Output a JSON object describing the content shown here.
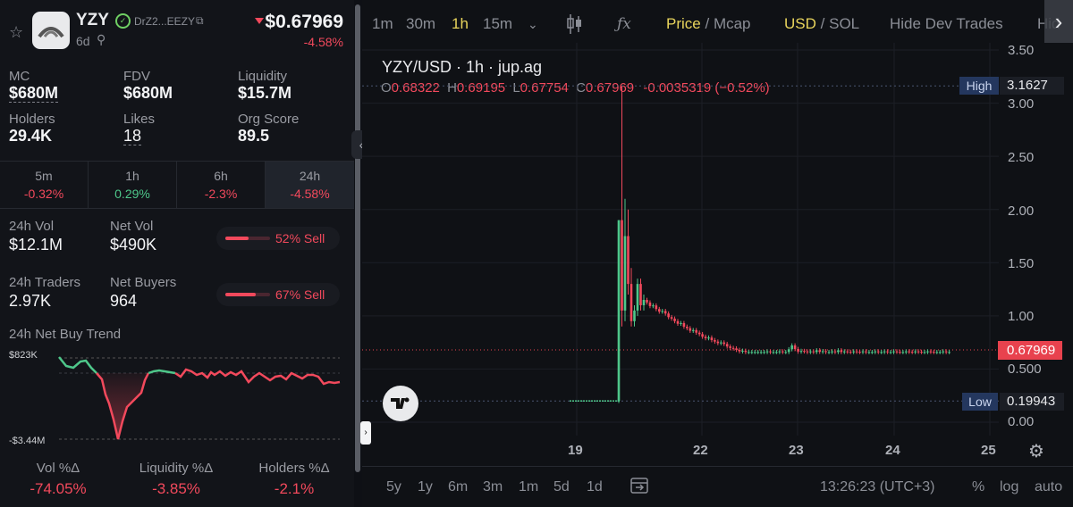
{
  "token": {
    "symbol": "YZY",
    "address": "DrZ2...EEZY",
    "age": "6d",
    "price": "$0.67969",
    "price_change": "-4.58%"
  },
  "stats": [
    {
      "label": "MC",
      "value": "$680M",
      "underline": true
    },
    {
      "label": "FDV",
      "value": "$680M",
      "underline": false
    },
    {
      "label": "Liquidity",
      "value": "$15.7M",
      "underline": false
    },
    {
      "label": "Holders",
      "value": "29.4K",
      "underline": false
    },
    {
      "label": "Likes",
      "value": "18",
      "underline": true
    },
    {
      "label": "Org Score",
      "value": "89.5",
      "underline": false
    }
  ],
  "timeframes": [
    {
      "label": "5m",
      "value": "-0.32%"
    },
    {
      "label": "1h",
      "value": "0.29%"
    },
    {
      "label": "6h",
      "value": "-2.3%"
    },
    {
      "label": "24h",
      "value": "-4.58%"
    }
  ],
  "volume": {
    "vol_label": "24h Vol",
    "vol_value": "$12.1M",
    "net_vol_label": "Net Vol",
    "net_vol_value": "$490K",
    "sell_pct_1": "52% Sell",
    "sell_frac_1": 0.52,
    "traders_label": "24h Traders",
    "traders_value": "2.97K",
    "net_buyers_label": "Net Buyers",
    "net_buyers_value": "964",
    "sell_pct_2": "67% Sell",
    "sell_frac_2": 0.67
  },
  "trend": {
    "title": "24h Net Buy Trend",
    "max_label": "$823K",
    "min_label": "-$3.44M"
  },
  "deltas": [
    {
      "label": "Vol %Δ",
      "value": "-74.05%"
    },
    {
      "label": "Liquidity %Δ",
      "value": "-3.85%"
    },
    {
      "label": "Holders %Δ",
      "value": "-2.1%"
    }
  ],
  "toolbar": {
    "intervals": [
      "1m",
      "30m",
      "1h",
      "15m"
    ],
    "price": "Price",
    "sep1": "/",
    "mcap": "Mcap",
    "usd": "USD",
    "sep2": "/",
    "sol": "SOL",
    "hide_dev": "Hide Dev Trades",
    "hidden": "Hid"
  },
  "chart_header": {
    "title": "YZY/USD · 1h · jup.ag",
    "o_lbl": "O",
    "o": "0.68322",
    "h_lbl": "H",
    "h": "0.69195",
    "l_lbl": "L",
    "l": "0.67754",
    "c_lbl": "C",
    "c": "0.67969",
    "chg": "-0.0035319 (−0.52%)"
  },
  "chart_data": {
    "type": "candlestick",
    "y_ticks": [
      "3.50",
      "3.00",
      "2.50",
      "2.00",
      "1.50",
      "1.00",
      "0.500",
      "0.00"
    ],
    "x_ticks": [
      "19",
      "22",
      "23",
      "24",
      "25"
    ],
    "high_label": "High",
    "high_value": "3.1627",
    "low_label": "Low",
    "low_value": "0.19943",
    "last_price": "0.67969"
  },
  "bottom": {
    "ranges": [
      "5y",
      "1y",
      "6m",
      "3m",
      "1m",
      "5d",
      "1d"
    ],
    "time": "13:26:23 (UTC+3)",
    "pct": "%",
    "log": "log",
    "auto": "auto"
  }
}
